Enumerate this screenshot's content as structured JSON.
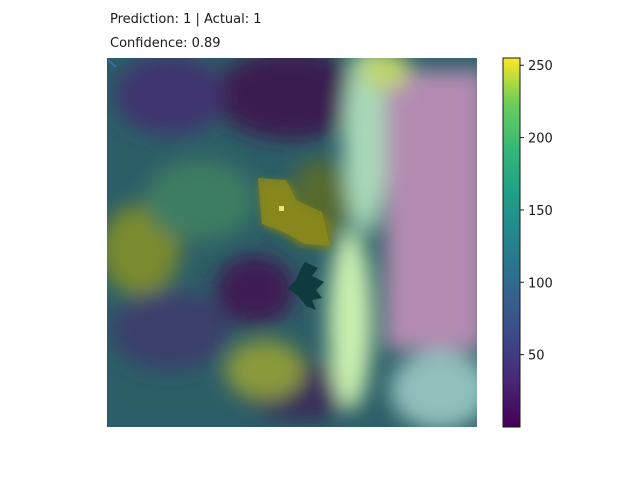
{
  "figure": {
    "title_line1": "Prediction: 1 | Actual: 1",
    "title_line2": "Confidence: 0.89"
  },
  "chart_data": {
    "type": "heatmap",
    "description_note": "",
    "colormap": "viridis",
    "colorbar": {
      "ticks": [
        50,
        100,
        150,
        200,
        250
      ],
      "range": [
        0,
        255
      ]
    },
    "axes_visible": false,
    "colors": {
      "viridis_low": "#440154",
      "viridis_mid": "#21918c",
      "viridis_high": "#fde725",
      "pink_overlay": "#b58bb3",
      "teal_overlay": "#2f6f6a",
      "light_band": "#c8f0c0"
    }
  }
}
